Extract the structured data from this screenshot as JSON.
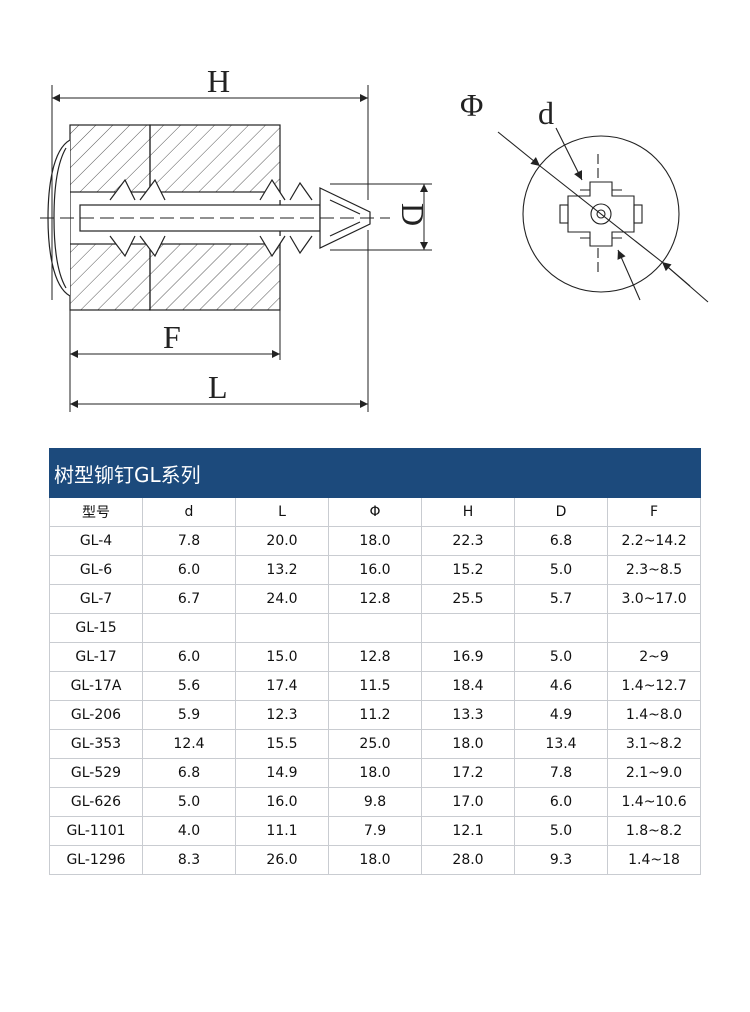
{
  "drawing": {
    "labels": {
      "H": "H",
      "L": "L",
      "F": "F",
      "D": "D",
      "phi": "Φ",
      "d": "d"
    }
  },
  "table": {
    "title": "树型铆钉GL系列",
    "headers": [
      "型号",
      "d",
      "L",
      "Φ",
      "H",
      "D",
      "F"
    ],
    "rows": [
      [
        "GL-4",
        "7.8",
        "20.0",
        "18.0",
        "22.3",
        "6.8",
        "2.2~14.2"
      ],
      [
        "GL-6",
        "6.0",
        "13.2",
        "16.0",
        "15.2",
        "5.0",
        "2.3~8.5"
      ],
      [
        "GL-7",
        "6.7",
        "24.0",
        "12.8",
        "25.5",
        "5.7",
        "3.0~17.0"
      ],
      [
        "GL-15",
        "",
        "",
        "",
        "",
        "",
        ""
      ],
      [
        "GL-17",
        "6.0",
        "15.0",
        "12.8",
        "16.9",
        "5.0",
        "2~9"
      ],
      [
        "GL-17A",
        "5.6",
        "17.4",
        "11.5",
        "18.4",
        "4.6",
        "1.4~12.7"
      ],
      [
        "GL-206",
        "5.9",
        "12.3",
        "11.2",
        "13.3",
        "4.9",
        "1.4~8.0"
      ],
      [
        "GL-353",
        "12.4",
        "15.5",
        "25.0",
        "18.0",
        "13.4",
        "3.1~8.2"
      ],
      [
        "GL-529",
        "6.8",
        "14.9",
        "18.0",
        "17.2",
        "7.8",
        "2.1~9.0"
      ],
      [
        "GL-626",
        "5.0",
        "16.0",
        "9.8",
        "17.0",
        "6.0",
        "1.4~10.6"
      ],
      [
        "GL-1101",
        "4.0",
        "11.1",
        "7.9",
        "12.1",
        "5.0",
        "1.8~8.2"
      ],
      [
        "GL-1296",
        "8.3",
        "26.0",
        "18.0",
        "28.0",
        "9.3",
        "1.4~18"
      ]
    ]
  }
}
